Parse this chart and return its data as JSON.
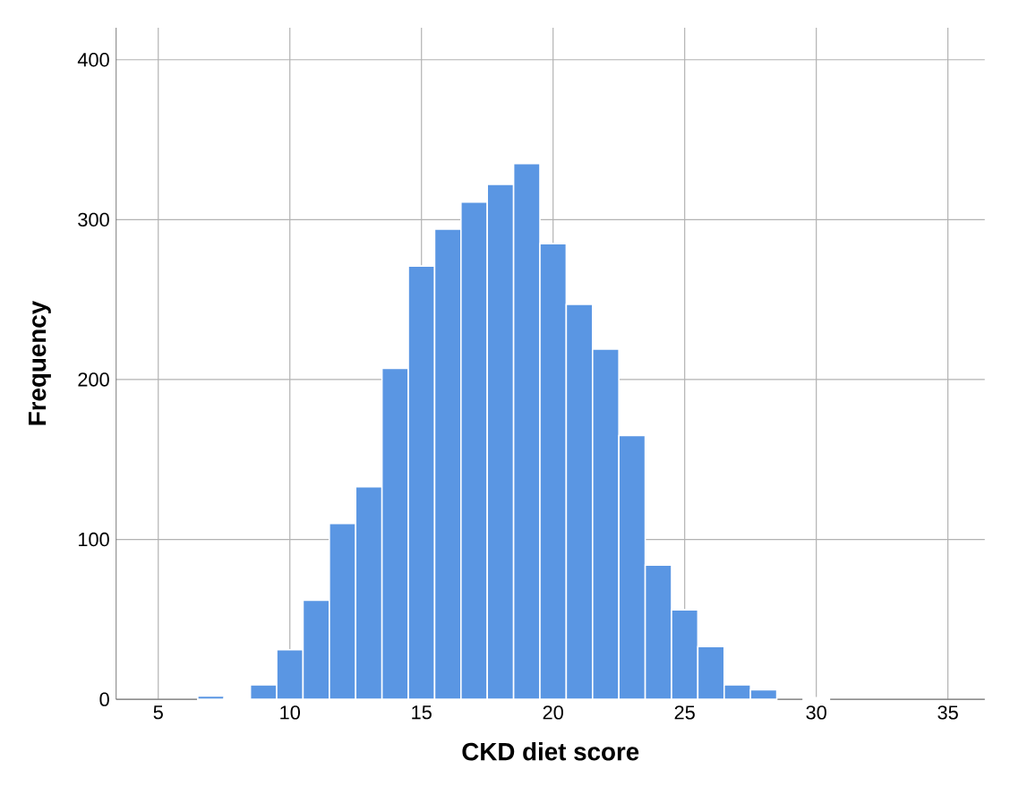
{
  "chart_data": {
    "type": "histogram",
    "xlabel": "CKD diet score",
    "ylabel": "Frequency",
    "bins": [
      6.5,
      7.5,
      8.5,
      9.5,
      10.5,
      11.5,
      12.5,
      13.5,
      14.5,
      15.5,
      16.5,
      17.5,
      18.5,
      19.5,
      20.5,
      21.5,
      22.5,
      23.5,
      24.5,
      25.5,
      26.5,
      27.5,
      28.5,
      29.5,
      30.5
    ],
    "values": [
      2,
      1,
      9,
      31,
      62,
      110,
      133,
      207,
      271,
      294,
      311,
      322,
      335,
      285,
      247,
      219,
      165,
      84,
      56,
      33,
      9,
      6,
      0,
      1
    ],
    "color": "#5a96e3",
    "xlim": [
      3.4,
      36.4
    ],
    "xticks": [
      5,
      10,
      15,
      20,
      25,
      30,
      35
    ],
    "ylim": [
      0,
      420
    ],
    "yticks": [
      0,
      100,
      200,
      300,
      400
    ],
    "grid": true
  }
}
